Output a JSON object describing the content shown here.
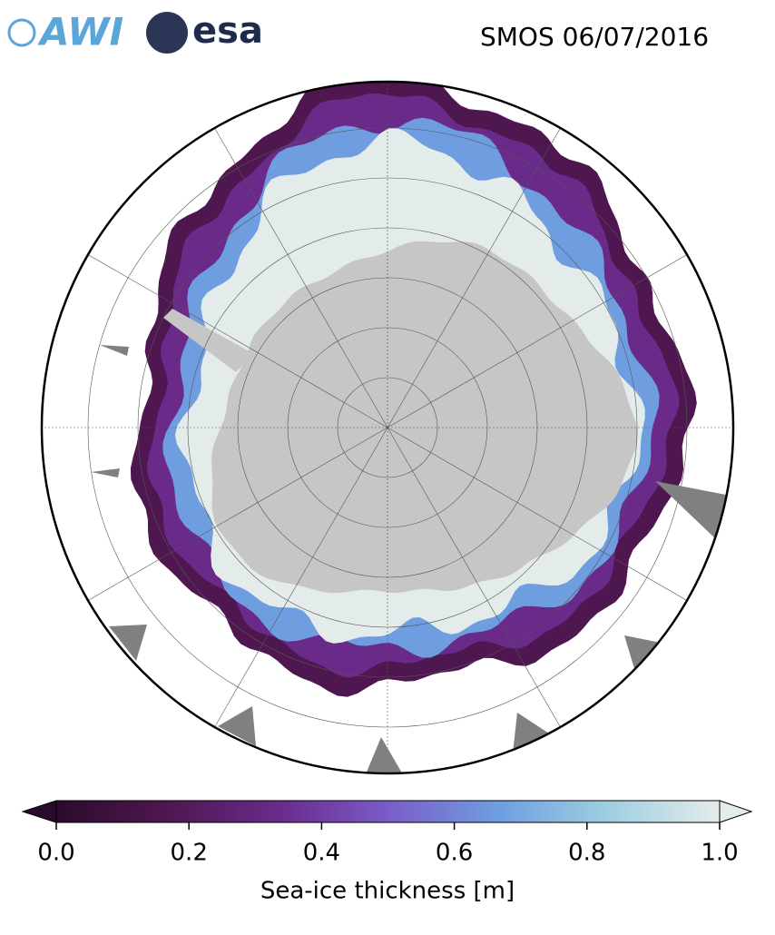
{
  "header": {
    "logos": [
      "AWI",
      "esa"
    ],
    "title": "SMOS 06/07/2016"
  },
  "colorbar": {
    "label": "Sea-ice thickness [m]",
    "lim": [
      0,
      1
    ],
    "ticks": [
      {
        "value": 0,
        "label": "0.0"
      },
      0.2,
      0.4,
      0.6,
      0.8,
      {
        "value": 1,
        "label": "1.0"
      }
    ],
    "colors": [
      "#2b0b2c",
      "#4f1750",
      "#6a2a8a",
      "#7a5cc8",
      "#6f9ee0",
      "#9fcfe0",
      "#e4eceb"
    ]
  }
}
